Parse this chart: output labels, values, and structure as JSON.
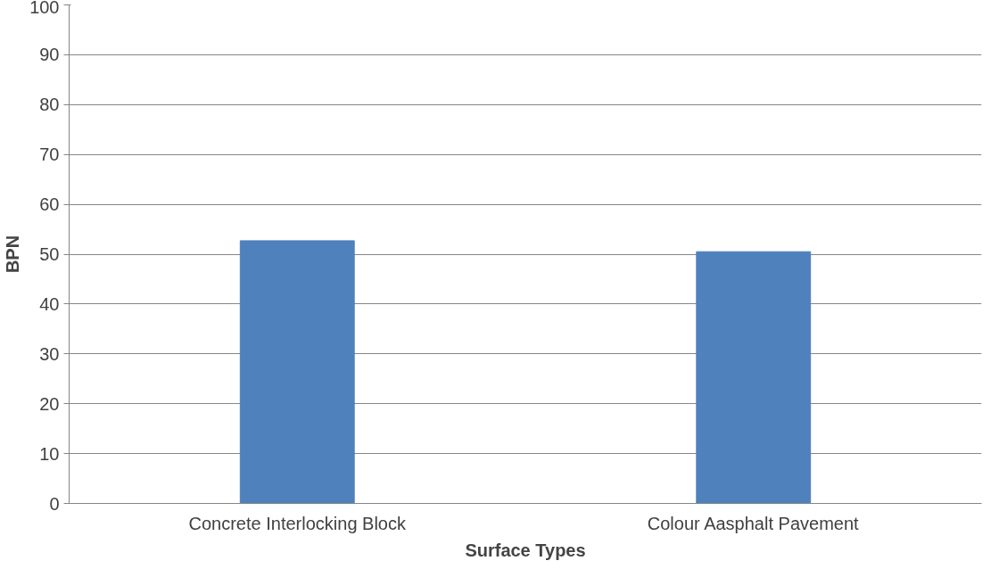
{
  "chart_data": {
    "type": "bar",
    "xlabel": "Surface Types",
    "ylabel": "BPN",
    "categories": [
      "Concrete Interlocking Block",
      "Colour Aasphalt Pavement"
    ],
    "values": [
      52.7,
      50.5
    ],
    "color": "#4f81bd",
    "ylim": [
      0,
      100
    ],
    "yticks": [
      0,
      10,
      20,
      30,
      40,
      50,
      60,
      70,
      80,
      90,
      100
    ],
    "grid": "y"
  }
}
